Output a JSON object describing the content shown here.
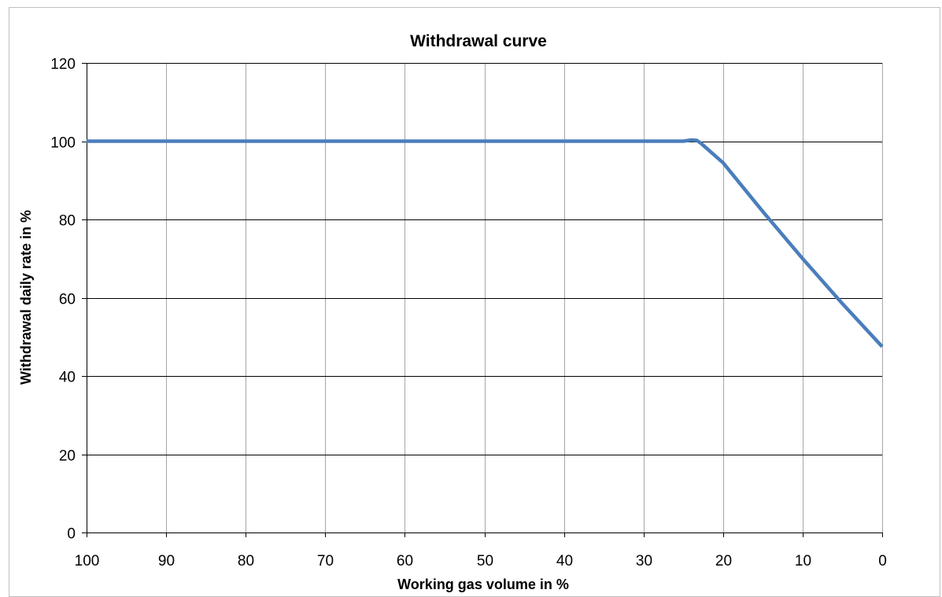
{
  "chart_data": {
    "type": "line",
    "title": "Withdrawal curve",
    "xlabel": "Working gas volume in %",
    "ylabel": "Withdrawal daily rate in %",
    "xlim": [
      100,
      0
    ],
    "x_reversed": true,
    "ylim": [
      0,
      120
    ],
    "x_ticks": [
      "100",
      "90",
      "80",
      "70",
      "60",
      "50",
      "40",
      "30",
      "20",
      "10",
      "0"
    ],
    "y_ticks": [
      "0",
      "20",
      "40",
      "60",
      "80",
      "100",
      "120"
    ],
    "grid": "both",
    "legend": "none",
    "series": [
      {
        "color": "#4a7ebb",
        "x": [
          100,
          90,
          80,
          70,
          60,
          50,
          40,
          30,
          25,
          24,
          23.3,
          22.8,
          20,
          15,
          10,
          5,
          0
        ],
        "y": [
          100,
          100,
          100,
          100,
          100,
          100,
          100,
          100,
          100,
          100.3,
          100.2,
          99.5,
          94.5,
          82,
          70,
          58.5,
          47.5
        ]
      }
    ]
  }
}
